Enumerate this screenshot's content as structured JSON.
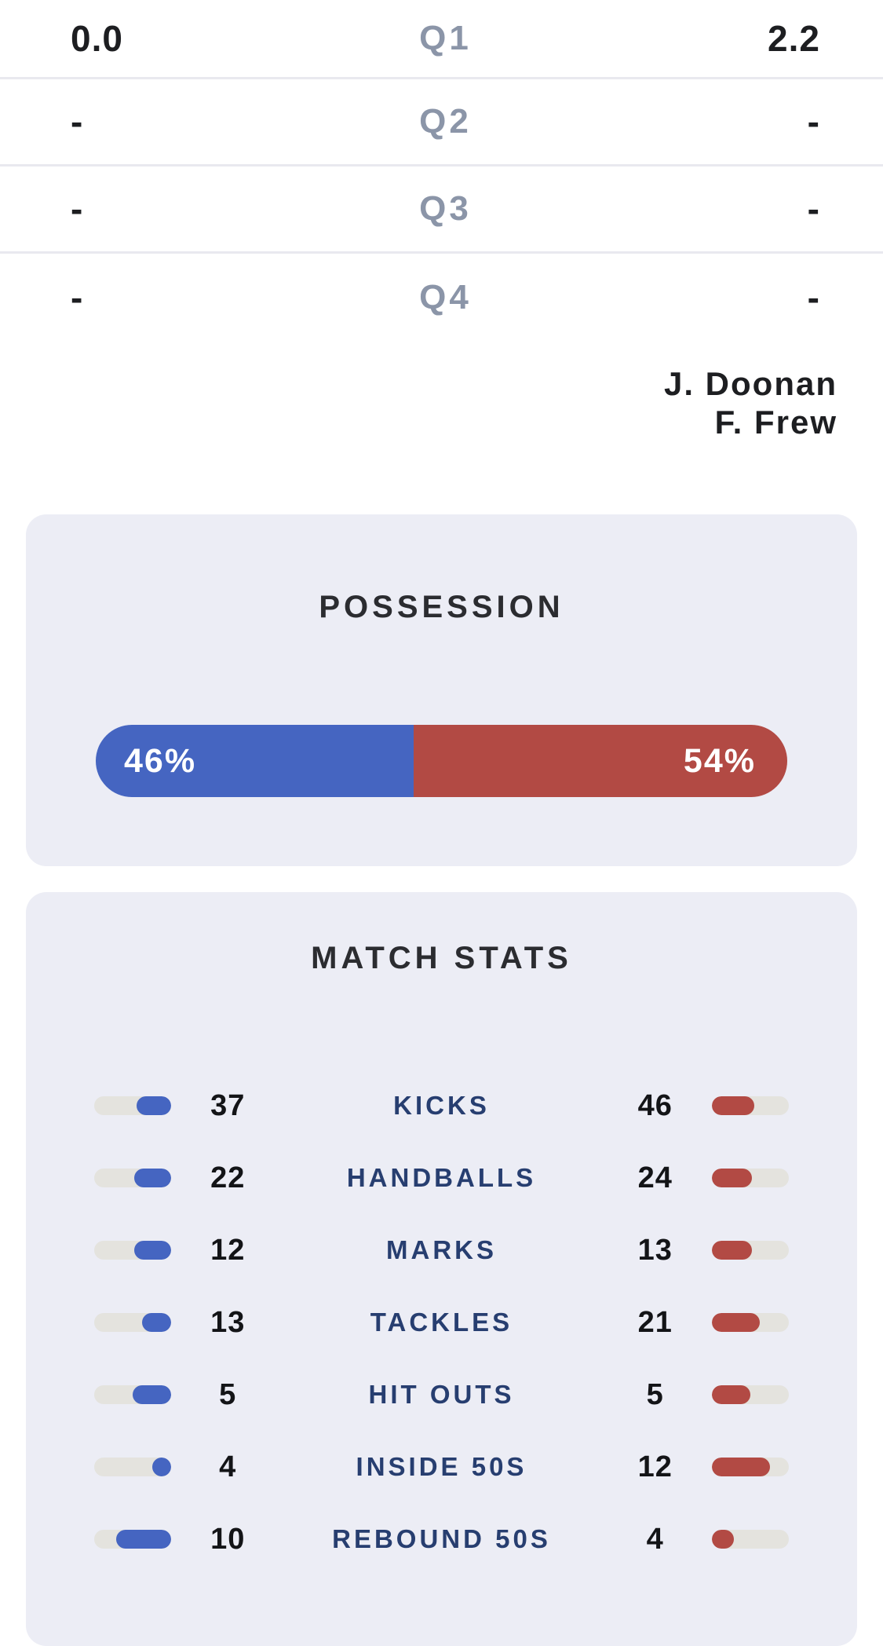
{
  "quarters": {
    "rows": [
      {
        "quarter": "Q1",
        "home": "0.0",
        "away": "2.2"
      },
      {
        "quarter": "Q2",
        "home": "-",
        "away": "-"
      },
      {
        "quarter": "Q3",
        "home": "-",
        "away": "-"
      },
      {
        "quarter": "Q4",
        "home": "-",
        "away": "-"
      }
    ]
  },
  "goal_kickers": {
    "players": [
      "J. Doonan",
      "F. Frew"
    ]
  },
  "possession": {
    "title": "POSSESSION",
    "home_pct": 46,
    "away_pct": 54,
    "home_label": "46%",
    "away_label": "54%"
  },
  "match_stats": {
    "title": "MATCH STATS",
    "rows": [
      {
        "label": "KICKS",
        "home": 37,
        "away": 46
      },
      {
        "label": "HANDBALLS",
        "home": 22,
        "away": 24
      },
      {
        "label": "MARKS",
        "home": 12,
        "away": 13
      },
      {
        "label": "TACKLES",
        "home": 13,
        "away": 21
      },
      {
        "label": "HIT OUTS",
        "home": 5,
        "away": 5
      },
      {
        "label": "INSIDE 50S",
        "home": 4,
        "away": 12
      },
      {
        "label": "REBOUND 50S",
        "home": 10,
        "away": 4
      }
    ]
  },
  "colors": {
    "home_team": "#4565c1",
    "away_team": "#b24a44",
    "bar_track": "#e4e3de",
    "card_background": "#ecedf5",
    "stat_label": "#273e70",
    "quarter_label": "#8b95a8",
    "score_text": "#1d1e21"
  }
}
